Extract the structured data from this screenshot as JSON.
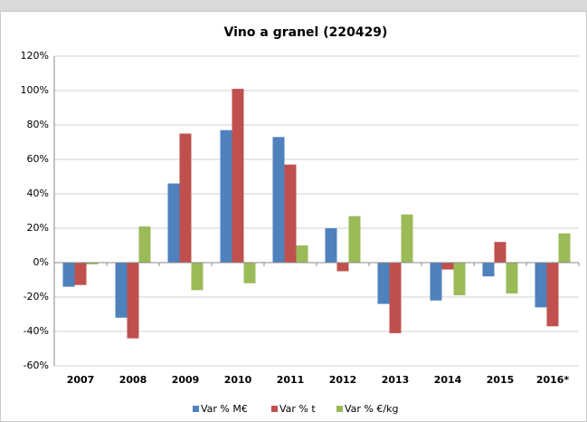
{
  "chart_data": {
    "type": "bar",
    "title": "Vino a granel (220429)",
    "categories": [
      "2007",
      "2008",
      "2009",
      "2010",
      "2011",
      "2012",
      "2013",
      "2014",
      "2015",
      "2016*"
    ],
    "series": [
      {
        "name": "Var % M€",
        "color": "#4f81bd",
        "values": [
          -14,
          -32,
          46,
          77,
          73,
          20,
          -24,
          -22,
          -8,
          -26
        ]
      },
      {
        "name": "Var % t",
        "color": "#c0504d",
        "values": [
          -13,
          -44,
          75,
          101,
          57,
          -5,
          -41,
          -4,
          12,
          -37
        ]
      },
      {
        "name": "Var % €/kg",
        "color": "#9bbb59",
        "values": [
          -1,
          21,
          -16,
          -12,
          10,
          27,
          28,
          -19,
          -18,
          17
        ]
      }
    ],
    "ylim": [
      -60,
      120
    ],
    "yticks": [
      {
        "value": -60,
        "label": "-60%"
      },
      {
        "value": -40,
        "label": "-40%"
      },
      {
        "value": -20,
        "label": "-20%"
      },
      {
        "value": 0,
        "label": "0%"
      },
      {
        "value": 20,
        "label": "20%"
      },
      {
        "value": 40,
        "label": "40%"
      },
      {
        "value": 60,
        "label": "60%"
      },
      {
        "value": 80,
        "label": "80%"
      },
      {
        "value": 100,
        "label": "100%"
      },
      {
        "value": 120,
        "label": "120%"
      }
    ],
    "grid": true,
    "legend": "bottom"
  }
}
